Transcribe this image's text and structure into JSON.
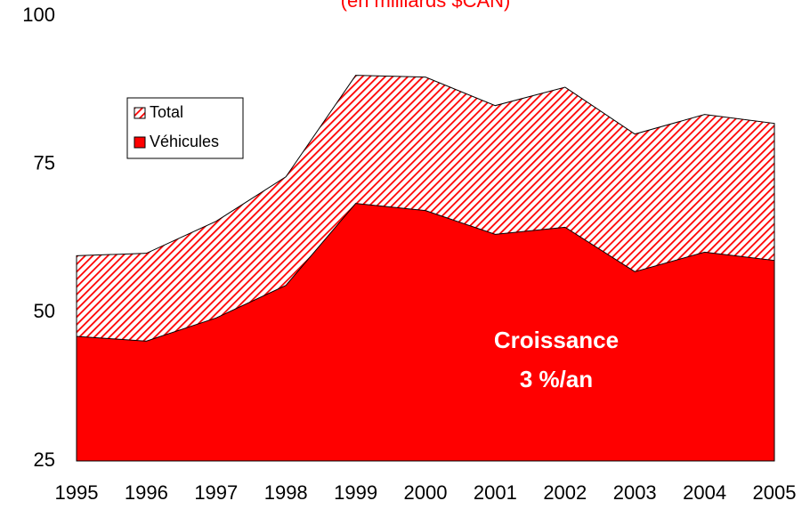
{
  "chart_data": {
    "type": "area",
    "subtitle": "(en milliards $CAN)",
    "categories": [
      "1995",
      "1996",
      "1997",
      "1998",
      "1999",
      "2000",
      "2001",
      "2002",
      "2003",
      "2004",
      "2005"
    ],
    "series": [
      {
        "name": "Total",
        "color": "#ff0000",
        "pattern": "hatch",
        "values": [
          59.6,
          60,
          65.4,
          72.9,
          90,
          89.7,
          84.9,
          88,
          80.1,
          83.4,
          81.9
        ]
      },
      {
        "name": "Véhicules",
        "color": "#ff0000",
        "values": [
          46,
          45.2,
          49.1,
          54.6,
          68.4,
          67.2,
          63.2,
          64.4,
          56.9,
          60.2,
          58.8
        ]
      }
    ],
    "annotation": [
      "Croissance",
      "3 %/an"
    ],
    "ylim": [
      25,
      100
    ],
    "yticks": [
      25,
      50,
      75,
      100
    ],
    "grid": false,
    "legend": "upper left"
  }
}
